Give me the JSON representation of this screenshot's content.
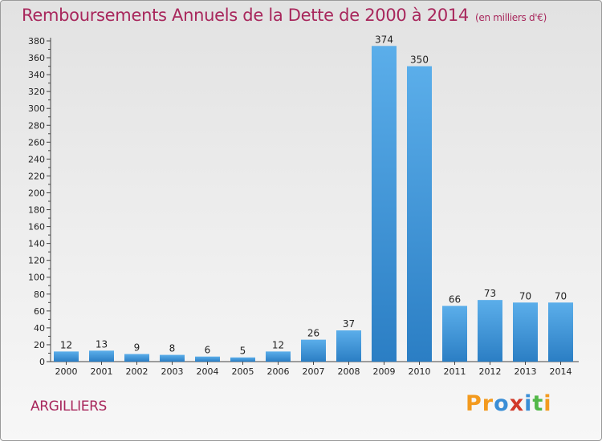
{
  "chart_data": {
    "type": "bar",
    "title": "Remboursements Annuels de la Dette de 2000 à 2014",
    "unit_label": "(en milliers d'€)",
    "categories": [
      "2000",
      "2001",
      "2002",
      "2003",
      "2004",
      "2005",
      "2006",
      "2007",
      "2008",
      "2009",
      "2010",
      "2011",
      "2012",
      "2013",
      "2014"
    ],
    "values": [
      12,
      13,
      9,
      8,
      6,
      5,
      12,
      26,
      37,
      374,
      350,
      66,
      73,
      70,
      70
    ],
    "ylim": [
      0,
      380
    ],
    "yticks": [
      0,
      20,
      40,
      60,
      80,
      100,
      120,
      140,
      160,
      180,
      200,
      220,
      240,
      260,
      280,
      300,
      320,
      340,
      360,
      380
    ],
    "grid": false,
    "bar_color_top": "#5baeea",
    "bar_color_bottom": "#2b7ec4"
  },
  "commune": "ARGILLIERS",
  "logo": {
    "letters": [
      "P",
      "r",
      "o",
      "x",
      "i",
      "t",
      "i"
    ],
    "colors": [
      "#f39a1e",
      "#f39a1e",
      "#3a8ed6",
      "#d23a2a",
      "#3a8ed6",
      "#52b848",
      "#f39a1e"
    ]
  }
}
